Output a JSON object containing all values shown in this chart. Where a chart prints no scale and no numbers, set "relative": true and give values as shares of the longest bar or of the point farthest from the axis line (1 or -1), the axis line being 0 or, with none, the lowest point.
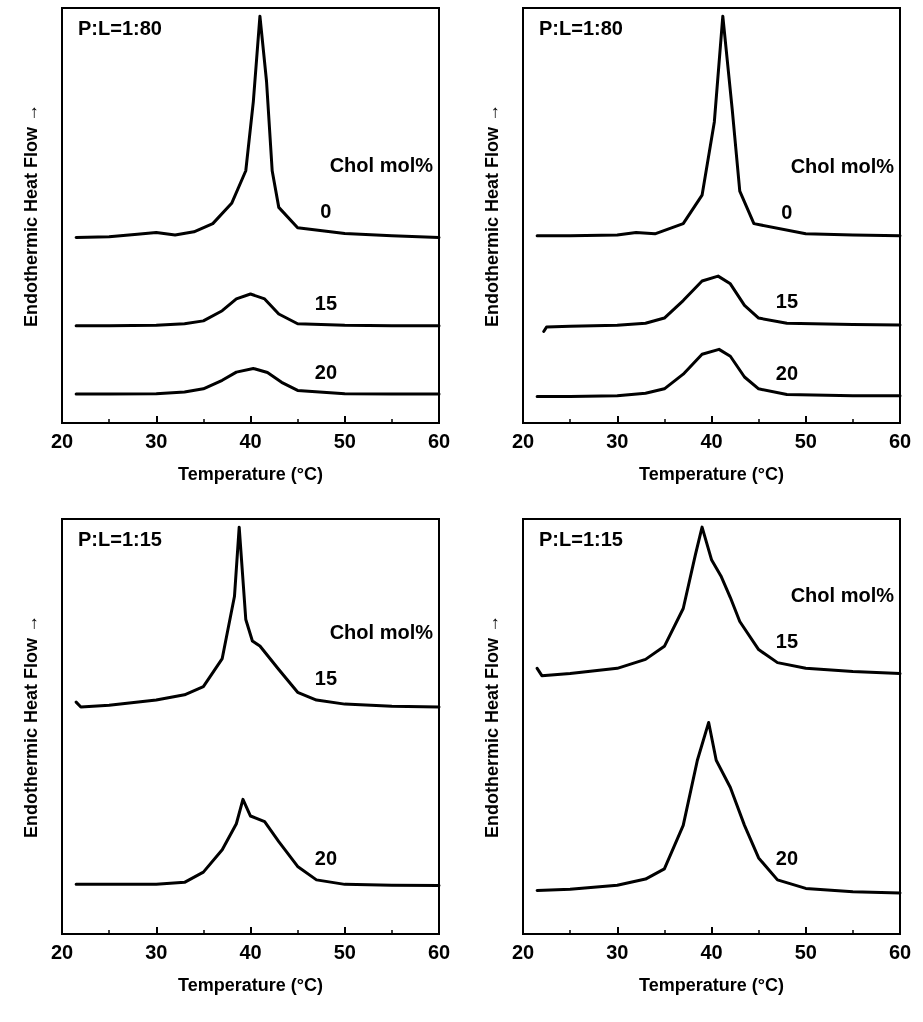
{
  "chart_data": [
    {
      "type": "line",
      "title": "P:L=1:80",
      "legend_title": "Chol mol%",
      "xlabel": "Temperature (°C)",
      "ylabel": "Endothermic Heat Flow →",
      "relative": true,
      "xlim": [
        20,
        60
      ],
      "xticks": [
        20,
        30,
        40,
        50,
        60
      ],
      "legend": false,
      "grid": false,
      "marker": "none",
      "line_style": "solid",
      "series": [
        {
          "name": "0",
          "color": "#000000",
          "x": [
            21.5,
            25,
            28,
            30,
            32,
            34,
            36,
            38,
            39.5,
            40.3,
            41,
            41.7,
            42.3,
            43,
            45,
            50,
            55,
            60
          ],
          "values": [
            0.456,
            0.458,
            0.464,
            0.468,
            0.462,
            0.47,
            0.49,
            0.54,
            0.62,
            0.79,
            1.0,
            0.84,
            0.62,
            0.53,
            0.48,
            0.466,
            0.46,
            0.456
          ]
        },
        {
          "name": "15",
          "color": "#000000",
          "x": [
            21.5,
            25,
            30,
            33,
            35,
            37,
            38.5,
            40,
            41.5,
            43,
            45,
            50,
            55,
            60
          ],
          "values": [
            0.239,
            0.239,
            0.24,
            0.244,
            0.251,
            0.276,
            0.305,
            0.317,
            0.305,
            0.268,
            0.244,
            0.24,
            0.239,
            0.239
          ]
        },
        {
          "name": "20",
          "color": "#000000",
          "x": [
            21.5,
            25,
            30,
            33,
            35,
            37,
            38.5,
            40.3,
            41.8,
            43.3,
            45,
            50,
            55,
            60
          ],
          "values": [
            0.071,
            0.071,
            0.072,
            0.076,
            0.084,
            0.105,
            0.125,
            0.134,
            0.124,
            0.1,
            0.08,
            0.072,
            0.071,
            0.071
          ]
        }
      ]
    },
    {
      "type": "line",
      "title": "P:L=1:80",
      "legend_title": "Chol mol%",
      "xlabel": "Temperature (°C)",
      "ylabel": "Endothermic Heat Flow →",
      "relative": true,
      "xlim": [
        20,
        60
      ],
      "xticks": [
        20,
        30,
        40,
        50,
        60
      ],
      "legend": false,
      "grid": false,
      "marker": "none",
      "line_style": "solid",
      "series": [
        {
          "name": "0",
          "color": "#000000",
          "x": [
            21.5,
            25,
            30,
            32,
            34,
            37,
            39,
            40.3,
            41.2,
            42.2,
            43,
            44.5,
            50,
            55,
            60
          ],
          "values": [
            0.46,
            0.46,
            0.462,
            0.468,
            0.465,
            0.49,
            0.56,
            0.74,
            1.0,
            0.77,
            0.57,
            0.49,
            0.465,
            0.462,
            0.46
          ]
        },
        {
          "name": "15",
          "color": "#000000",
          "x": [
            22.2,
            22.5,
            25,
            30,
            33,
            35,
            37,
            39,
            40.7,
            42,
            43.5,
            45,
            48,
            55,
            60
          ],
          "values": [
            0.225,
            0.236,
            0.238,
            0.24,
            0.245,
            0.258,
            0.301,
            0.349,
            0.361,
            0.342,
            0.289,
            0.258,
            0.245,
            0.242,
            0.241
          ]
        },
        {
          "name": "20",
          "color": "#000000",
          "x": [
            21.5,
            25,
            30,
            33,
            35,
            37,
            39,
            40.8,
            42,
            43.5,
            45,
            48,
            55,
            60
          ],
          "values": [
            0.065,
            0.065,
            0.067,
            0.073,
            0.084,
            0.12,
            0.169,
            0.181,
            0.164,
            0.113,
            0.084,
            0.07,
            0.067,
            0.067
          ]
        }
      ]
    },
    {
      "type": "line",
      "title": "P:L=1:15",
      "legend_title": "Chol mol%",
      "xlabel": "Temperature (°C)",
      "ylabel": "Endothermic Heat Flow →",
      "relative": true,
      "xlim": [
        20,
        60
      ],
      "xticks": [
        20,
        30,
        40,
        50,
        60
      ],
      "legend": false,
      "grid": false,
      "marker": "none",
      "line_style": "solid",
      "series": [
        {
          "name": "15",
          "color": "#000000",
          "x": [
            21.5,
            22,
            25,
            30,
            33,
            35,
            37,
            38.3,
            38.8,
            39.5,
            40.2,
            41,
            43,
            45,
            47,
            50,
            55,
            60
          ],
          "values": [
            0.57,
            0.558,
            0.562,
            0.575,
            0.588,
            0.608,
            0.677,
            0.83,
            1.0,
            0.773,
            0.72,
            0.708,
            0.65,
            0.594,
            0.575,
            0.565,
            0.56,
            0.558
          ]
        },
        {
          "name": "20",
          "color": "#000000",
          "x": [
            21.5,
            25,
            30,
            33,
            35,
            37,
            38.5,
            39.2,
            40,
            41.5,
            43,
            45,
            47,
            50,
            55,
            60
          ],
          "values": [
            0.122,
            0.122,
            0.122,
            0.127,
            0.152,
            0.207,
            0.271,
            0.331,
            0.29,
            0.276,
            0.227,
            0.166,
            0.133,
            0.122,
            0.12,
            0.119
          ]
        }
      ]
    },
    {
      "type": "line",
      "title": "P:L=1:15",
      "legend_title": "Chol mol%",
      "xlabel": "Temperature (°C)",
      "ylabel": "Endothermic Heat Flow →",
      "relative": true,
      "xlim": [
        20,
        60
      ],
      "xticks": [
        20,
        30,
        40,
        50,
        60
      ],
      "legend": false,
      "grid": false,
      "marker": "none",
      "line_style": "solid",
      "series": [
        {
          "name": "15",
          "color": "#000000",
          "x": [
            21.5,
            22,
            25,
            30,
            33,
            35,
            37,
            38.3,
            39,
            40,
            41,
            42,
            43,
            45,
            47,
            50,
            55,
            60
          ],
          "values": [
            0.653,
            0.635,
            0.64,
            0.653,
            0.675,
            0.707,
            0.8,
            0.933,
            1.0,
            0.92,
            0.88,
            0.827,
            0.768,
            0.699,
            0.667,
            0.653,
            0.645,
            0.64
          ]
        },
        {
          "name": "20",
          "color": "#000000",
          "x": [
            21.5,
            25,
            30,
            33,
            35,
            37,
            38.5,
            39.7,
            40.5,
            42,
            43.5,
            45,
            47,
            50,
            55,
            60
          ],
          "values": [
            0.107,
            0.11,
            0.12,
            0.135,
            0.16,
            0.267,
            0.427,
            0.52,
            0.427,
            0.36,
            0.267,
            0.187,
            0.133,
            0.112,
            0.104,
            0.101
          ]
        }
      ]
    }
  ]
}
